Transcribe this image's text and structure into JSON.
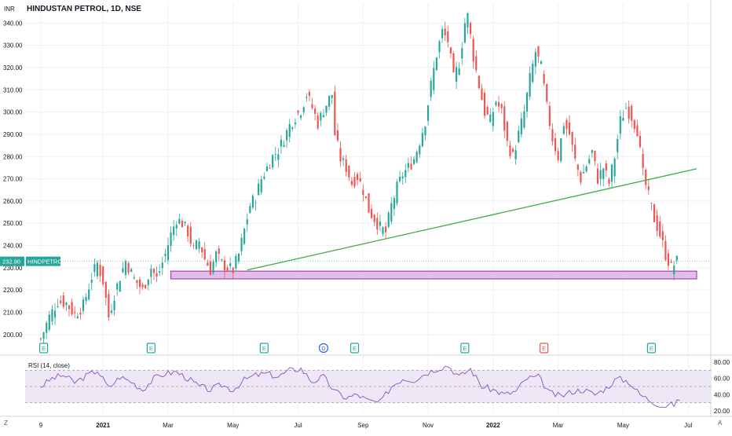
{
  "chart": {
    "title": "HINDUSTAN PETROL, 1D, NSE",
    "currency": "INR",
    "last_price_label": "232.90",
    "symbol_label": "HINDPETRO",
    "rsi_label": "RSI (14, close)",
    "corner_left": "Z",
    "corner_right": "A",
    "colors": {
      "up": "#26a69a",
      "down": "#ef5350",
      "trendline": "#4caf50",
      "zone_fill": "#e1bee7",
      "zone_stroke": "#9c27b0",
      "rsi_line": "#7e57c2",
      "rsi_band": "#ede7f6",
      "grid": "#eef0f3",
      "earnings": "#26a69a",
      "earnings_red": "#ef5350",
      "dividend": "#2962ff"
    }
  },
  "chart_data": [
    {
      "type": "candlestick",
      "title": "HINDUSTAN PETROL, 1D, NSE",
      "ylabel": "INR",
      "y_ticks": [
        "200.00",
        "210.00",
        "220.00",
        "230.00",
        "240.00",
        "250.00",
        "260.00",
        "270.00",
        "280.00",
        "290.00",
        "300.00",
        "310.00",
        "320.00",
        "330.00",
        "340.00"
      ],
      "ylim": [
        195,
        344
      ],
      "x_ticks": [
        "9",
        "2021",
        "Mar",
        "May",
        "Jul",
        "Sep",
        "Nov",
        "2022",
        "Mar",
        "May",
        "Jul"
      ],
      "x_tick_index": [
        0,
        22,
        45,
        68,
        91,
        114,
        137,
        160,
        183,
        206,
        229
      ],
      "last_price": 232.9,
      "close_path": [
        [
          0,
          198
        ],
        [
          3,
          208
        ],
        [
          6,
          215
        ],
        [
          9,
          214
        ],
        [
          12,
          209
        ],
        [
          15,
          213
        ],
        [
          18,
          226
        ],
        [
          20,
          232
        ],
        [
          22,
          224
        ],
        [
          24,
          208
        ],
        [
          26,
          218
        ],
        [
          28,
          226
        ],
        [
          30,
          233
        ],
        [
          33,
          225
        ],
        [
          36,
          220
        ],
        [
          39,
          230
        ],
        [
          41,
          225
        ],
        [
          44,
          236
        ],
        [
          46,
          245
        ],
        [
          48,
          252
        ],
        [
          50,
          250
        ],
        [
          52,
          246
        ],
        [
          54,
          238
        ],
        [
          56,
          242
        ],
        [
          58,
          234
        ],
        [
          60,
          229
        ],
        [
          62,
          236
        ],
        [
          64,
          232
        ],
        [
          66,
          230
        ],
        [
          68,
          229
        ],
        [
          70,
          236
        ],
        [
          72,
          247
        ],
        [
          74,
          258
        ],
        [
          76,
          262
        ],
        [
          78,
          270
        ],
        [
          80,
          275
        ],
        [
          82,
          280
        ],
        [
          84,
          283
        ],
        [
          86,
          288
        ],
        [
          88,
          294
        ],
        [
          90,
          298
        ],
        [
          92,
          301
        ],
        [
          94,
          308
        ],
        [
          96,
          302
        ],
        [
          98,
          295
        ],
        [
          100,
          301
        ],
        [
          102,
          306
        ],
        [
          103,
          308
        ],
        [
          104,
          290
        ],
        [
          106,
          279
        ],
        [
          108,
          275
        ],
        [
          110,
          268
        ],
        [
          112,
          271
        ],
        [
          114,
          265
        ],
        [
          116,
          256
        ],
        [
          118,
          252
        ],
        [
          120,
          248
        ],
        [
          122,
          246
        ],
        [
          124,
          258
        ],
        [
          126,
          266
        ],
        [
          128,
          272
        ],
        [
          130,
          275
        ],
        [
          132,
          279
        ],
        [
          134,
          287
        ],
        [
          136,
          296
        ],
        [
          138,
          312
        ],
        [
          140,
          326
        ],
        [
          142,
          336
        ],
        [
          144,
          332
        ],
        [
          146,
          315
        ],
        [
          148,
          322
        ],
        [
          150,
          340
        ],
        [
          151,
          343
        ],
        [
          153,
          325
        ],
        [
          155,
          312
        ],
        [
          157,
          300
        ],
        [
          159,
          296
        ],
        [
          161,
          305
        ],
        [
          163,
          300
        ],
        [
          165,
          286
        ],
        [
          167,
          280
        ],
        [
          169,
          290
        ],
        [
          171,
          300
        ],
        [
          173,
          315
        ],
        [
          175,
          327
        ],
        [
          177,
          320
        ],
        [
          179,
          302
        ],
        [
          181,
          288
        ],
        [
          183,
          280
        ],
        [
          185,
          295
        ],
        [
          187,
          290
        ],
        [
          189,
          278
        ],
        [
          191,
          270
        ],
        [
          193,
          276
        ],
        [
          195,
          282
        ],
        [
          197,
          270
        ],
        [
          199,
          275
        ],
        [
          201,
          268
        ],
        [
          203,
          280
        ],
        [
          205,
          296
        ],
        [
          207,
          302
        ],
        [
          209,
          298
        ],
        [
          211,
          292
        ],
        [
          213,
          272
        ],
        [
          215,
          262
        ],
        [
          217,
          252
        ],
        [
          219,
          245
        ],
        [
          221,
          236
        ],
        [
          223,
          230
        ],
        [
          225,
          232.9
        ]
      ],
      "trendline": {
        "start": [
          73,
          229
        ],
        "end": [
          232,
          274.5
        ]
      },
      "support_zone": {
        "x_start": 46,
        "x_end": 232,
        "y_low": 225,
        "y_high": 228.5
      },
      "event_markers": [
        {
          "x": 1,
          "label": "E",
          "kind": "earnings"
        },
        {
          "x": 39,
          "label": "E",
          "kind": "earnings"
        },
        {
          "x": 79,
          "label": "E",
          "kind": "earnings"
        },
        {
          "x": 100,
          "label": "D",
          "kind": "dividend"
        },
        {
          "x": 111,
          "label": "E",
          "kind": "earnings"
        },
        {
          "x": 150,
          "label": "E",
          "kind": "earnings"
        },
        {
          "x": 178,
          "label": "E",
          "kind": "earnings_red"
        },
        {
          "x": 216,
          "label": "E",
          "kind": "earnings"
        }
      ]
    },
    {
      "type": "line",
      "title": "RSI (14, close)",
      "y_ticks": [
        "20.00",
        "40.00",
        "60.00",
        "80.00"
      ],
      "ylim": [
        17,
        83
      ],
      "bands": {
        "upper": 70,
        "middle": 50,
        "lower": 30
      },
      "series": [
        {
          "name": "RSI (14, close)",
          "points": [
            [
              0,
              50
            ],
            [
              4,
              60
            ],
            [
              8,
              64
            ],
            [
              12,
              55
            ],
            [
              16,
              63
            ],
            [
              20,
              70
            ],
            [
              24,
              48
            ],
            [
              28,
              62
            ],
            [
              32,
              56
            ],
            [
              36,
              46
            ],
            [
              40,
              60
            ],
            [
              44,
              66
            ],
            [
              48,
              68
            ],
            [
              52,
              60
            ],
            [
              56,
              50
            ],
            [
              60,
              46
            ],
            [
              64,
              52
            ],
            [
              68,
              46
            ],
            [
              72,
              58
            ],
            [
              76,
              64
            ],
            [
              80,
              66
            ],
            [
              84,
              62
            ],
            [
              88,
              70
            ],
            [
              92,
              72
            ],
            [
              96,
              56
            ],
            [
              100,
              62
            ],
            [
              104,
              44
            ],
            [
              108,
              36
            ],
            [
              112,
              40
            ],
            [
              116,
              32
            ],
            [
              120,
              30
            ],
            [
              124,
              50
            ],
            [
              128,
              60
            ],
            [
              132,
              58
            ],
            [
              136,
              66
            ],
            [
              140,
              72
            ],
            [
              144,
              76
            ],
            [
              148,
              62
            ],
            [
              152,
              72
            ],
            [
              156,
              50
            ],
            [
              160,
              46
            ],
            [
              164,
              40
            ],
            [
              168,
              44
            ],
            [
              172,
              60
            ],
            [
              176,
              62
            ],
            [
              180,
              42
            ],
            [
              184,
              38
            ],
            [
              188,
              44
            ],
            [
              192,
              46
            ],
            [
              196,
              40
            ],
            [
              200,
              48
            ],
            [
              204,
              60
            ],
            [
              208,
              56
            ],
            [
              212,
              40
            ],
            [
              216,
              32
            ],
            [
              220,
              26
            ],
            [
              224,
              28
            ],
            [
              226,
              33
            ]
          ]
        }
      ]
    }
  ]
}
